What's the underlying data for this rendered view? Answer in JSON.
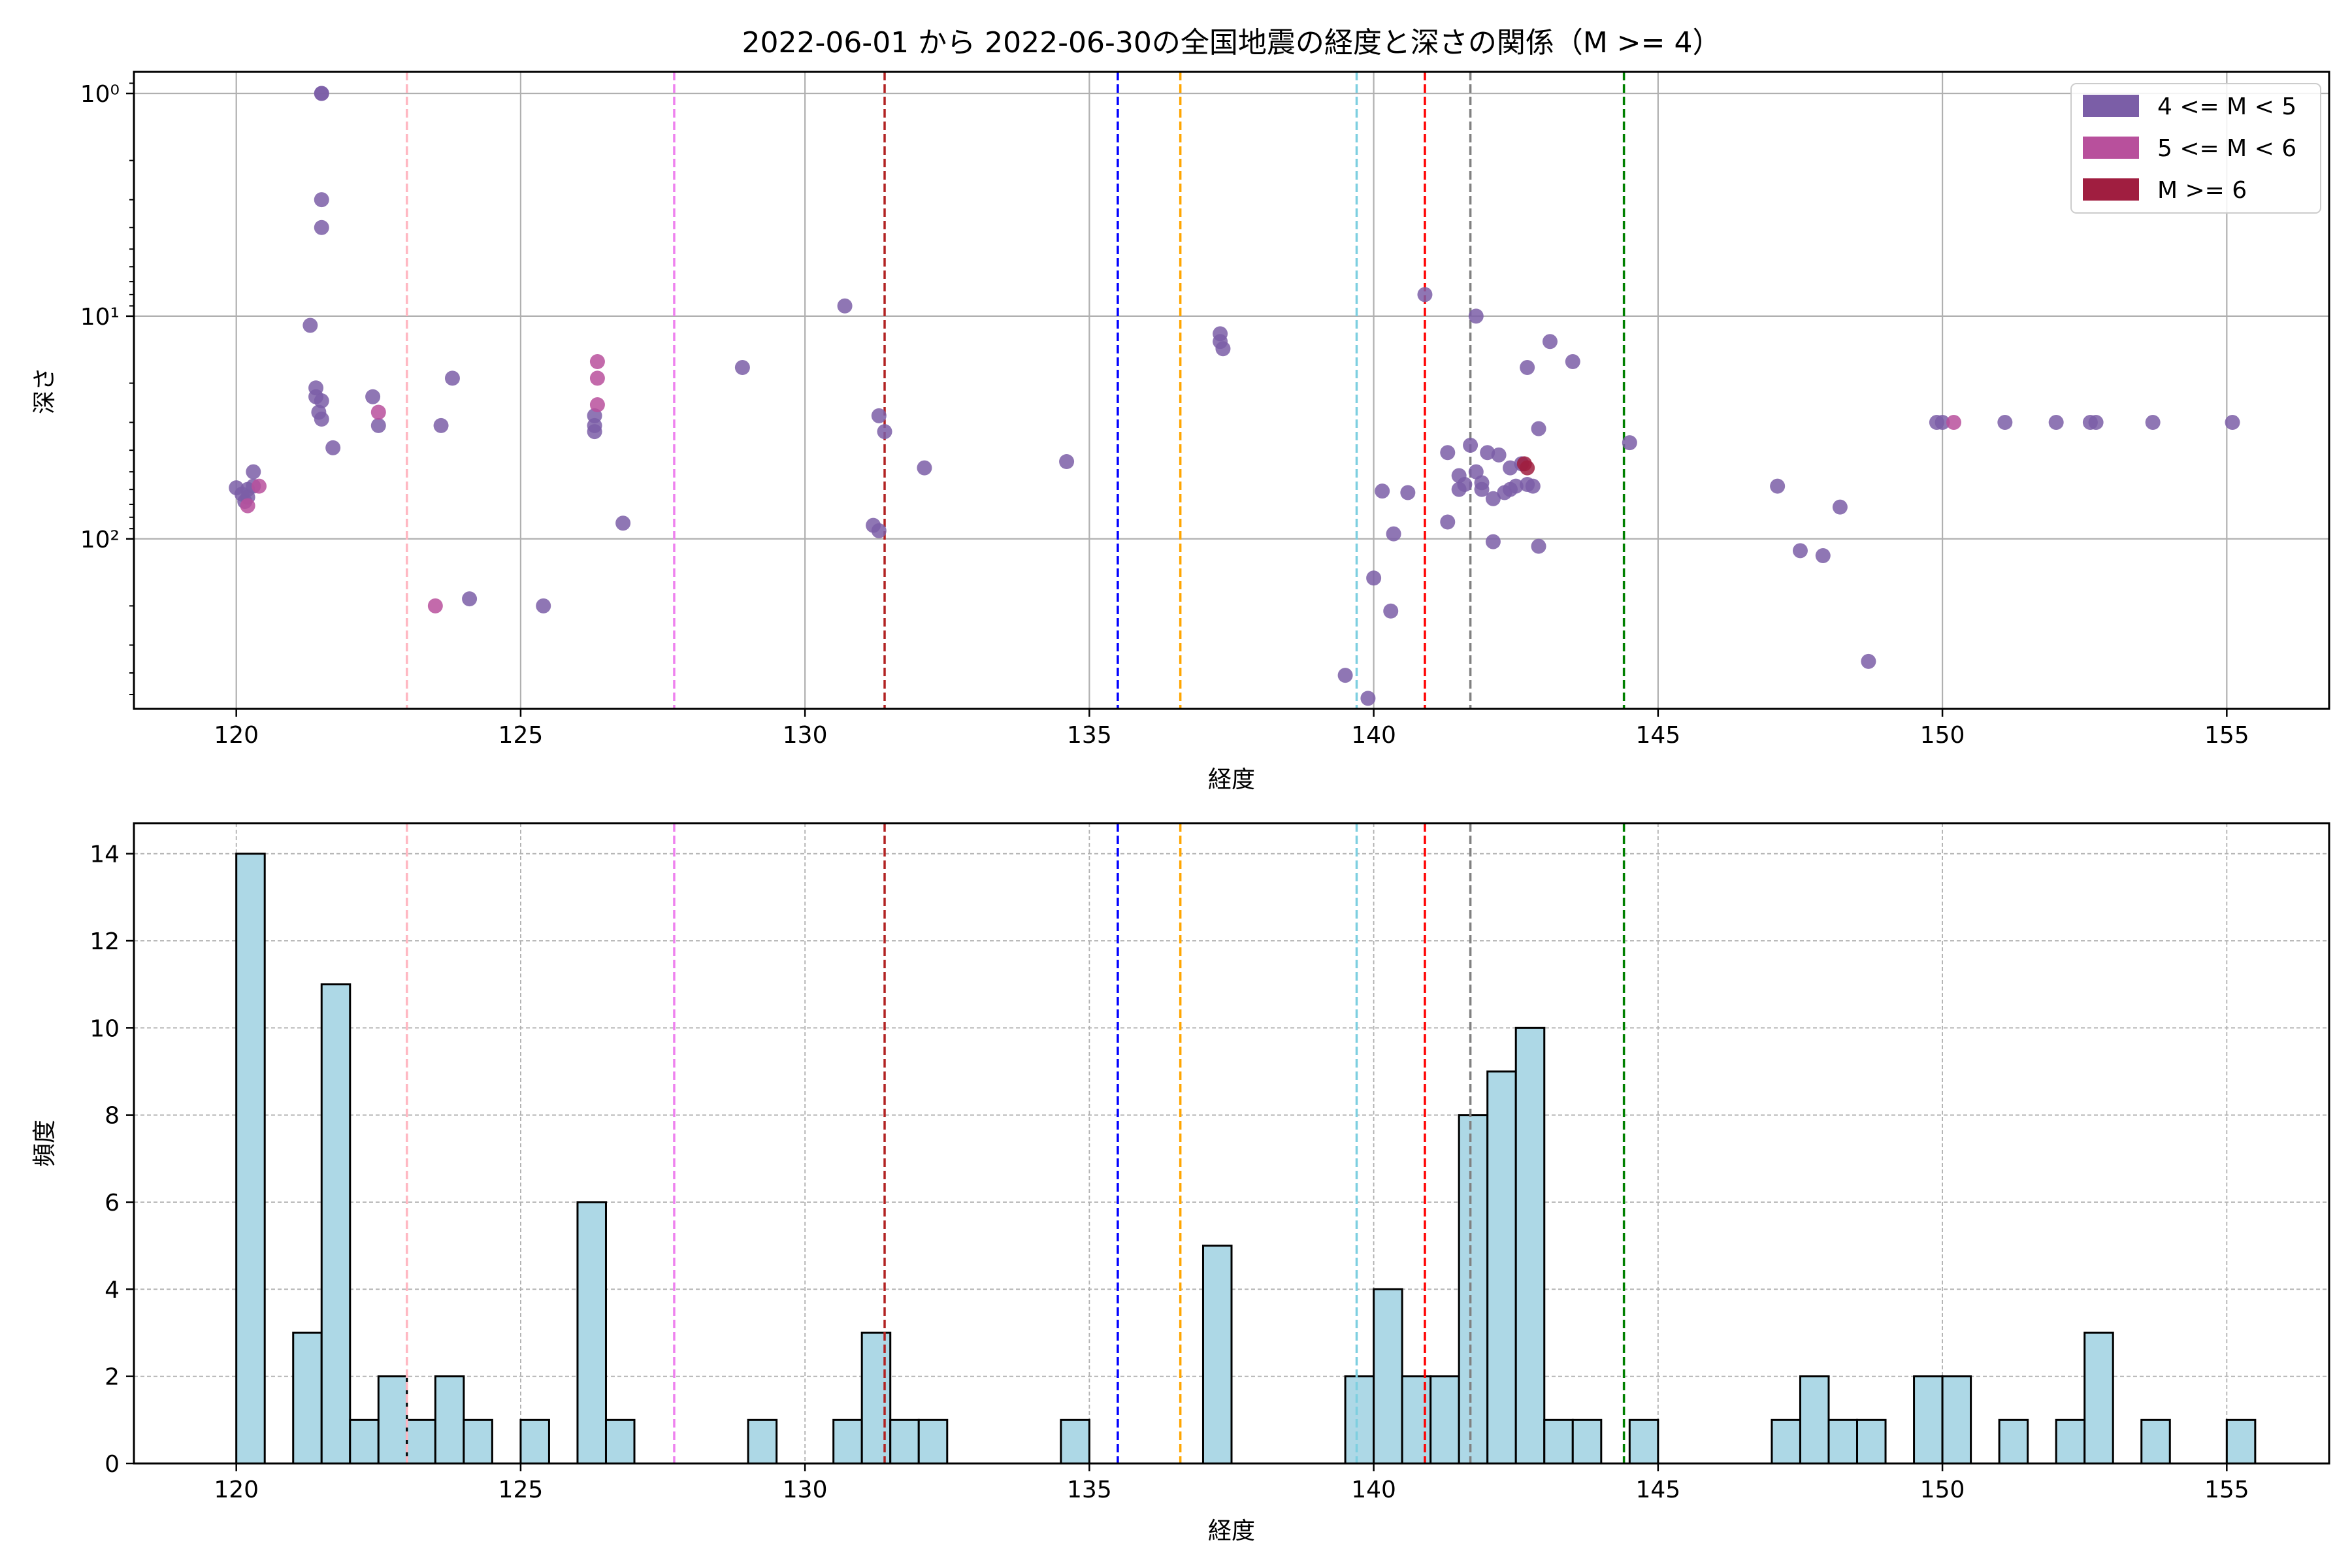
{
  "chart_data": [
    {
      "type": "scatter",
      "title": "2022-06-01 から 2022-06-30の全国地震の経度と深さの関係（M >= 4）",
      "xlabel": "経度",
      "ylabel": "深さ",
      "xlim": [
        118.2,
        156.8
      ],
      "ylim": [
        0.8,
        580
      ],
      "yscale": "log",
      "yaxis_inverted": true,
      "xticks": [
        120,
        125,
        130,
        135,
        140,
        145,
        150,
        155
      ],
      "yticks": [
        1,
        10,
        100
      ],
      "ytick_labels": [
        "10⁰",
        "10¹",
        "10²"
      ],
      "grid": true,
      "legend_position": "top-right",
      "vertical_lines": [
        {
          "x": 123.0,
          "color": "#ffb6c1"
        },
        {
          "x": 127.7,
          "color": "#ee82ee"
        },
        {
          "x": 131.4,
          "color": "#b22222"
        },
        {
          "x": 135.5,
          "color": "#0000ff"
        },
        {
          "x": 136.6,
          "color": "#ffa500"
        },
        {
          "x": 139.7,
          "color": "#7ecfe0"
        },
        {
          "x": 140.9,
          "color": "#ff0000"
        },
        {
          "x": 141.7,
          "color": "#808080"
        },
        {
          "x": 144.4,
          "color": "#008000"
        }
      ],
      "series": [
        {
          "name": "4 <= M < 5",
          "color": "#7b5ea7",
          "points": [
            [
              121.5,
              1
            ],
            [
              121.5,
              1
            ],
            [
              121.5,
              3
            ],
            [
              121.5,
              4
            ],
            [
              121.3,
              11
            ],
            [
              120.0,
              59
            ],
            [
              120.1,
              63
            ],
            [
              120.2,
              60
            ],
            [
              120.3,
              50
            ],
            [
              120.2,
              65
            ],
            [
              120.15,
              68
            ],
            [
              120.3,
              58
            ],
            [
              121.4,
              21
            ],
            [
              121.4,
              23
            ],
            [
              121.5,
              24
            ],
            [
              121.45,
              27
            ],
            [
              121.5,
              29
            ],
            [
              121.7,
              39
            ],
            [
              122.4,
              23
            ],
            [
              122.5,
              31
            ],
            [
              123.6,
              31
            ],
            [
              123.8,
              19
            ],
            [
              124.1,
              186
            ],
            [
              125.4,
              200
            ],
            [
              126.8,
              85
            ],
            [
              126.3,
              28
            ],
            [
              126.3,
              31
            ],
            [
              126.3,
              33
            ],
            [
              128.9,
              17
            ],
            [
              130.7,
              9
            ],
            [
              131.3,
              28
            ],
            [
              131.4,
              33
            ],
            [
              131.2,
              87
            ],
            [
              131.3,
              92
            ],
            [
              132.1,
              48
            ],
            [
              134.6,
              45
            ],
            [
              137.3,
              12
            ],
            [
              137.3,
              13
            ],
            [
              137.35,
              14
            ],
            [
              139.5,
              410
            ],
            [
              139.9,
              520
            ],
            [
              140.0,
              150
            ],
            [
              140.3,
              211
            ],
            [
              140.15,
              61
            ],
            [
              140.35,
              95
            ],
            [
              140.6,
              62
            ],
            [
              140.9,
              8
            ],
            [
              141.3,
              84
            ],
            [
              141.3,
              41
            ],
            [
              141.5,
              52
            ],
            [
              141.5,
              60
            ],
            [
              141.6,
              57
            ],
            [
              141.7,
              38
            ],
            [
              141.8,
              10
            ],
            [
              141.8,
              50
            ],
            [
              141.9,
              56
            ],
            [
              141.9,
              60
            ],
            [
              142.0,
              41
            ],
            [
              142.1,
              103
            ],
            [
              142.1,
              66
            ],
            [
              142.2,
              42
            ],
            [
              142.3,
              62
            ],
            [
              142.4,
              48
            ],
            [
              142.4,
              60
            ],
            [
              142.5,
              58
            ],
            [
              142.6,
              46
            ],
            [
              142.7,
              57
            ],
            [
              142.8,
              58
            ],
            [
              142.9,
              108
            ],
            [
              142.9,
              32
            ],
            [
              142.7,
              17
            ],
            [
              143.1,
              13
            ],
            [
              143.5,
              16
            ],
            [
              144.5,
              37
            ],
            [
              147.1,
              58
            ],
            [
              147.5,
              113
            ],
            [
              147.9,
              119
            ],
            [
              148.2,
              72
            ],
            [
              148.7,
              355
            ],
            [
              149.9,
              30
            ],
            [
              150.0,
              30
            ],
            [
              151.1,
              30
            ],
            [
              152.0,
              30
            ],
            [
              152.6,
              30
            ],
            [
              152.7,
              30
            ],
            [
              153.7,
              30
            ],
            [
              155.1,
              30
            ]
          ]
        },
        {
          "name": "5 <= M < 6",
          "color": "#b8509c",
          "points": [
            [
              120.2,
              71
            ],
            [
              120.4,
              58
            ],
            [
              122.5,
              27
            ],
            [
              123.5,
              200
            ],
            [
              126.35,
              16
            ],
            [
              126.35,
              19
            ],
            [
              126.35,
              25
            ],
            [
              150.2,
              30
            ]
          ]
        },
        {
          "name": "M >= 6",
          "color": "#a01e40",
          "points": [
            [
              142.7,
              48
            ],
            [
              142.65,
              46
            ]
          ]
        }
      ]
    },
    {
      "type": "bar",
      "subtype": "histogram",
      "xlabel": "経度",
      "ylabel": "頻度",
      "xlim": [
        118.2,
        156.8
      ],
      "ylim": [
        0,
        14.7
      ],
      "xticks": [
        120,
        125,
        130,
        135,
        140,
        145,
        150,
        155
      ],
      "yticks": [
        0,
        2,
        4,
        6,
        8,
        10,
        12,
        14
      ],
      "grid": true,
      "bar_color": "#add8e6",
      "edge_color": "#000000",
      "bin_width": 0.5,
      "bins": [
        {
          "start": 120.0,
          "count": 14
        },
        {
          "start": 121.0,
          "count": 3
        },
        {
          "start": 121.5,
          "count": 11
        },
        {
          "start": 122.0,
          "count": 1
        },
        {
          "start": 122.5,
          "count": 2
        },
        {
          "start": 123.0,
          "count": 1
        },
        {
          "start": 123.5,
          "count": 2
        },
        {
          "start": 124.0,
          "count": 1
        },
        {
          "start": 125.0,
          "count": 1
        },
        {
          "start": 126.0,
          "count": 6
        },
        {
          "start": 126.5,
          "count": 1
        },
        {
          "start": 129.0,
          "count": 1
        },
        {
          "start": 130.5,
          "count": 1
        },
        {
          "start": 131.0,
          "count": 3
        },
        {
          "start": 131.5,
          "count": 1
        },
        {
          "start": 132.0,
          "count": 1
        },
        {
          "start": 134.5,
          "count": 1
        },
        {
          "start": 137.0,
          "count": 5
        },
        {
          "start": 139.5,
          "count": 2
        },
        {
          "start": 140.0,
          "count": 4
        },
        {
          "start": 140.5,
          "count": 2
        },
        {
          "start": 141.0,
          "count": 2
        },
        {
          "start": 141.5,
          "count": 8
        },
        {
          "start": 142.0,
          "count": 9
        },
        {
          "start": 142.5,
          "count": 10
        },
        {
          "start": 143.0,
          "count": 1
        },
        {
          "start": 143.5,
          "count": 1
        },
        {
          "start": 144.5,
          "count": 1
        },
        {
          "start": 147.0,
          "count": 1
        },
        {
          "start": 147.5,
          "count": 2
        },
        {
          "start": 148.0,
          "count": 1
        },
        {
          "start": 148.5,
          "count": 1
        },
        {
          "start": 149.5,
          "count": 2
        },
        {
          "start": 150.0,
          "count": 2
        },
        {
          "start": 151.0,
          "count": 1
        },
        {
          "start": 152.0,
          "count": 1
        },
        {
          "start": 152.5,
          "count": 3
        },
        {
          "start": 153.5,
          "count": 1
        },
        {
          "start": 155.0,
          "count": 1
        }
      ],
      "vertical_lines": [
        {
          "x": 123.0,
          "color": "#ffb6c1"
        },
        {
          "x": 127.7,
          "color": "#ee82ee"
        },
        {
          "x": 131.4,
          "color": "#b22222"
        },
        {
          "x": 135.5,
          "color": "#0000ff"
        },
        {
          "x": 136.6,
          "color": "#ffa500"
        },
        {
          "x": 139.7,
          "color": "#7ecfe0"
        },
        {
          "x": 140.9,
          "color": "#ff0000"
        },
        {
          "x": 141.7,
          "color": "#808080"
        },
        {
          "x": 144.4,
          "color": "#008000"
        }
      ]
    }
  ]
}
